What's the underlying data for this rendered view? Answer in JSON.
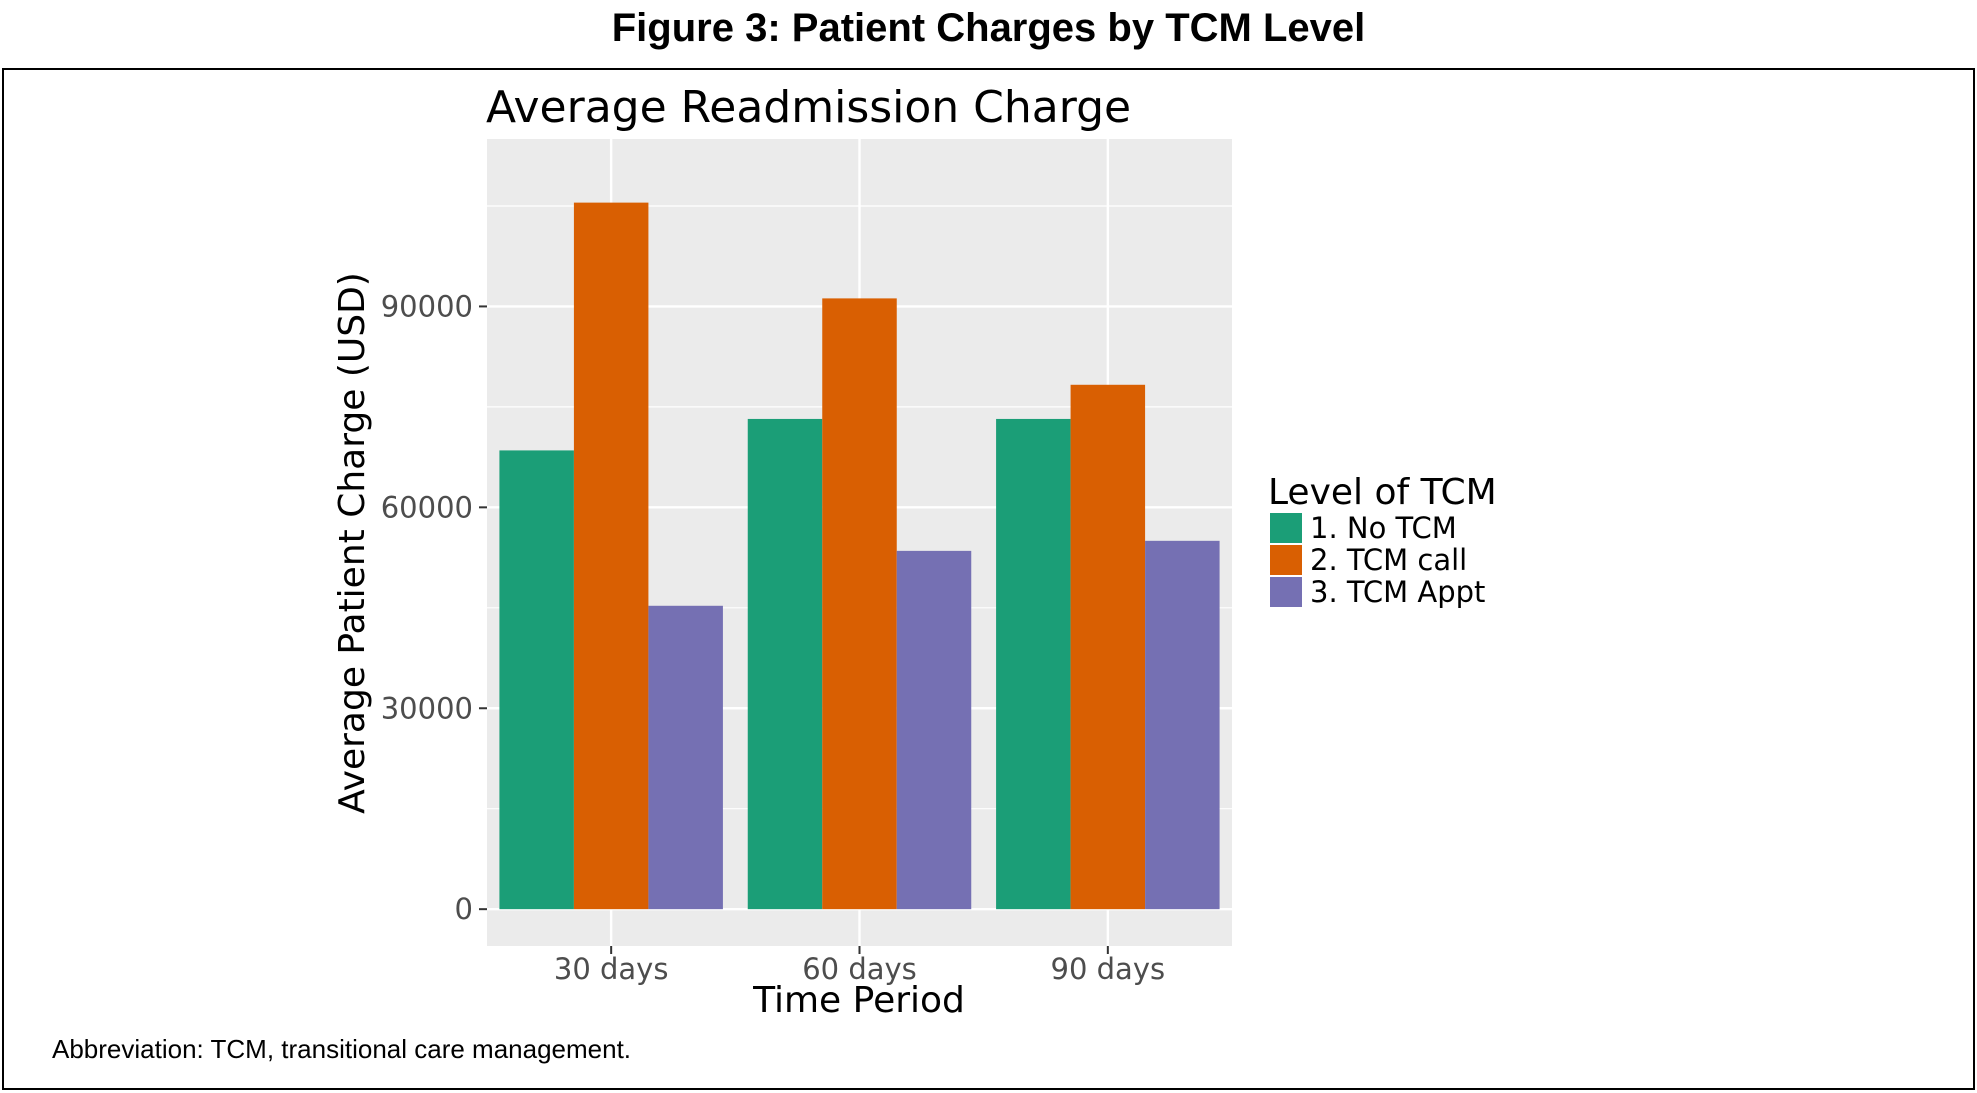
{
  "figure_title": "Figure 3: Patient Charges by TCM Level",
  "footnote": "Abbreviation: TCM, transitional care management.",
  "chart_data": {
    "type": "bar",
    "title": "Average Readmission Charge",
    "xlabel": "Time Period",
    "ylabel": "Average Patient Charge (USD)",
    "categories": [
      "30 days",
      "60 days",
      "90 days"
    ],
    "ylim": [
      -5500,
      115000
    ],
    "yticks": [
      0,
      30000,
      60000,
      90000
    ],
    "ytick_labels": [
      "0",
      "30000",
      "60000",
      "90000"
    ],
    "grid": true,
    "legend_title": "Level of TCM",
    "legend_position": "right",
    "series": [
      {
        "name": "1. No TCM",
        "color": "#1b9e77",
        "values": [
          68500,
          73200,
          73200
        ]
      },
      {
        "name": "2. TCM call",
        "color": "#d95f02",
        "values": [
          105500,
          91200,
          78300
        ]
      },
      {
        "name": "3. TCM Appt",
        "color": "#7570b3",
        "values": [
          45300,
          53500,
          55000
        ]
      }
    ],
    "panel_background": "#ebebeb",
    "gridline_color": "#ffffff"
  }
}
